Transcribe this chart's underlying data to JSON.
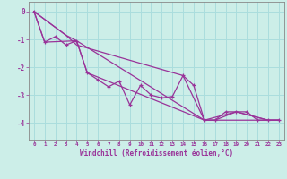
{
  "title": "",
  "xlabel": "Windchill (Refroidissement éolien,°C)",
  "ylabel": "",
  "bg_color": "#cceee8",
  "grid_color": "#aadddd",
  "line_color": "#993399",
  "spine_color": "#888888",
  "xlim": [
    -0.5,
    23.5
  ],
  "ylim": [
    -4.6,
    0.35
  ],
  "xticks": [
    0,
    1,
    2,
    3,
    4,
    5,
    6,
    7,
    8,
    9,
    10,
    11,
    12,
    13,
    14,
    15,
    16,
    17,
    18,
    19,
    20,
    21,
    22,
    23
  ],
  "yticks": [
    0,
    -1,
    -2,
    -3,
    -4
  ],
  "lines": [
    {
      "x": [
        0,
        1,
        2,
        3,
        4,
        5,
        6,
        7,
        8,
        9,
        10,
        11,
        12,
        13,
        14,
        15,
        16,
        17,
        18,
        19,
        20,
        21,
        22,
        23
      ],
      "y": [
        0.0,
        -1.1,
        -0.9,
        -1.2,
        -1.05,
        -2.2,
        -2.45,
        -2.7,
        -2.5,
        -3.35,
        -2.65,
        -3.0,
        -3.1,
        -3.05,
        -2.3,
        -2.65,
        -3.9,
        -3.9,
        -3.6,
        -3.6,
        -3.6,
        -3.9,
        -3.9,
        -3.9
      ],
      "marker": true
    },
    {
      "x": [
        0,
        3,
        4,
        16,
        23
      ],
      "y": [
        0.0,
        -0.85,
        -1.05,
        -3.9,
        -3.9
      ],
      "marker": false
    },
    {
      "x": [
        0,
        3,
        4,
        14,
        16,
        19,
        22,
        23
      ],
      "y": [
        0.0,
        -0.85,
        -1.2,
        -2.3,
        -3.9,
        -3.6,
        -3.9,
        -3.9
      ],
      "marker": false
    },
    {
      "x": [
        0,
        1,
        4,
        5,
        16,
        17,
        19,
        22,
        23
      ],
      "y": [
        0.0,
        -1.1,
        -1.05,
        -2.2,
        -3.9,
        -3.9,
        -3.6,
        -3.9,
        -3.9
      ],
      "marker": false
    }
  ]
}
